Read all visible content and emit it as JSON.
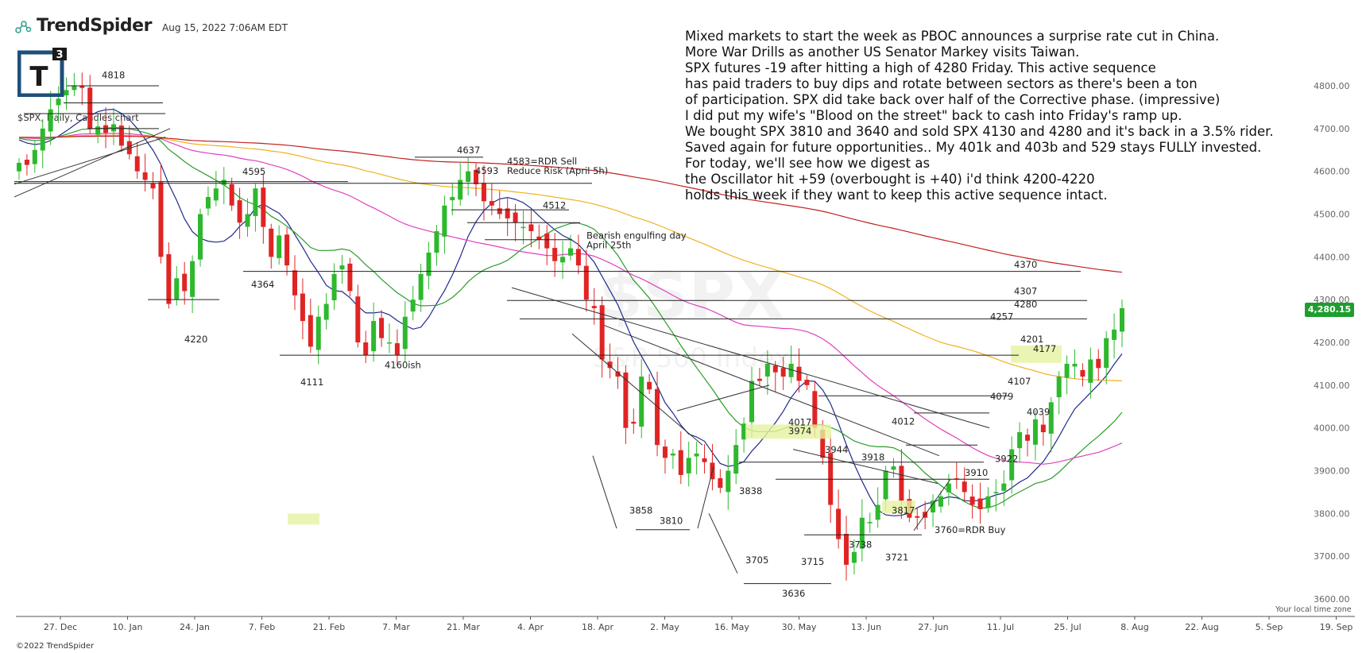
{
  "header": {
    "brand": "TrendSpider",
    "timestamp": "Aug 15, 2022 7:06AM EDT",
    "logo_text": "T",
    "logo_sup": "3"
  },
  "commentary": [
    "Mixed markets to start the week as PBOC announces a surprise rate cut in China.",
    "More War Drills as another US Senator Markey visits Taiwan.",
    "SPX futures -19 after hitting a high of 4280 Friday. This active sequence",
    "has paid traders to buy dips and rotate between sectors as there's been a ton",
    "of participation. SPX did take back over half of the Corrective phase. (impressive)",
    "I did put my wife's \"Blood on the street\" back to cash into Friday's ramp up.",
    "We bought SPX 3810 and 3640 and sold SPX 4130 and 4280 and it's back in a 3.5% rider.",
    "Saved again for future opportunities.. My 401k and 403b and 529 stays FULLY invested.",
    "For today, we'll see how we digest as",
    "the Oscillator hit +59 (overbought is +40) i'd think 4200-4220",
    "holds this week if they want to keep this active sequence intact."
  ],
  "footer": "©2022 TrendSpider",
  "timezone_label": "Your local time zone",
  "last_price": "4,280.15",
  "chart_data": {
    "type": "candlestick",
    "title": "$SPX, Daily, Candles chart",
    "watermark": "$SPX",
    "watermark_sub": "S&P 500 Index",
    "ylim": [
      3550,
      4900
    ],
    "y_ticks": [
      3600,
      3700,
      3800,
      3900,
      4000,
      4100,
      4200,
      4300,
      4400,
      4500,
      4600,
      4700,
      4800
    ],
    "x_ticks": [
      "27. Dec",
      "10. Jan",
      "24. Jan",
      "7. Feb",
      "21. Feb",
      "7. Mar",
      "21. Mar",
      "4. Apr",
      "18. Apr",
      "2. May",
      "16. May",
      "30. May",
      "13. Jun",
      "27. Jun",
      "11. Jul",
      "25. Jul",
      "8. Aug",
      "22. Aug",
      "5. Sep",
      "19. Sep"
    ],
    "up_color": "#2db82d",
    "down_color": "#e02424",
    "close_path": [
      4620,
      4615,
      4650,
      4700,
      4745,
      4770,
      4790,
      4800,
      4795,
      4700,
      4705,
      4690,
      4710,
      4660,
      4640,
      4600,
      4580,
      4560,
      4400,
      4290,
      4350,
      4320,
      4390,
      4500,
      4540,
      4560,
      4580,
      4520,
      4480,
      4500,
      4560,
      4470,
      4400,
      4450,
      4380,
      4310,
      4250,
      4190,
      4260,
      4290,
      4360,
      4380,
      4320,
      4200,
      4170,
      4250,
      4210,
      4200,
      4170,
      4260,
      4300,
      4360,
      4410,
      4460,
      4520,
      4540,
      4580,
      4600,
      4570,
      4530,
      4520,
      4500,
      4490,
      4480,
      4470,
      4460,
      4440,
      4420,
      4390,
      4400,
      4420,
      4380,
      4300,
      4280,
      4160,
      4140,
      4120,
      4000,
      4010,
      4120,
      4090,
      3960,
      3930,
      3940,
      3890,
      3930,
      3940,
      3920,
      3880,
      3860,
      3900,
      3960,
      4010,
      4110,
      4110,
      4150,
      4130,
      4120,
      4150,
      4110,
      4100,
      4000,
      3930,
      3820,
      3740,
      3680,
      3710,
      3790,
      3780,
      3820,
      3900,
      3910,
      3830,
      3790,
      3790,
      3790,
      3830,
      3840,
      3870,
      3880,
      3850,
      3820,
      3810,
      3840,
      3850,
      3870,
      3950,
      3990,
      3970,
      4020,
      3990,
      4060,
      4120,
      4150,
      4150,
      4120,
      4160,
      4140,
      4210,
      4230,
      4280
    ],
    "candles": 140,
    "moving_averages": [
      {
        "name": "9",
        "color": "#1f2a8c"
      },
      {
        "name": "20",
        "color": "#2a9d2a"
      },
      {
        "name": "50",
        "color": "#e040c0"
      },
      {
        "name": "100",
        "color": "#f0b020"
      },
      {
        "name": "200",
        "color": "#c02020"
      }
    ],
    "levels": [
      {
        "label": "4818",
        "value": 4818
      },
      {
        "label": "4595",
        "value": 4595
      },
      {
        "label": "4637",
        "value": 4637
      },
      {
        "label": "4593",
        "value": 4593
      },
      {
        "label": "4583=RDR Sell",
        "value": 4583
      },
      {
        "label": "Reduce Risk (April 5h)",
        "value": 4560
      },
      {
        "label": "4512",
        "value": 4512
      },
      {
        "label": "Bearish engulfing day",
        "value": 4460
      },
      {
        "label": "April 25th",
        "value": 4435
      },
      {
        "label": "4370",
        "value": 4370
      },
      {
        "label": "4364",
        "value": 4364
      },
      {
        "label": "4307",
        "value": 4307
      },
      {
        "label": "4280",
        "value": 4280
      },
      {
        "label": "4257",
        "value": 4257
      },
      {
        "label": "4220",
        "value": 4220
      },
      {
        "label": "4201",
        "value": 4201
      },
      {
        "label": "4177",
        "value": 4177
      },
      {
        "label": "4160ish",
        "value": 4160
      },
      {
        "label": "4111",
        "value": 4111
      },
      {
        "label": "4107",
        "value": 4107
      },
      {
        "label": "4079",
        "value": 4079
      },
      {
        "label": "4039",
        "value": 4039
      },
      {
        "label": "4017",
        "value": 4017
      },
      {
        "label": "4012",
        "value": 4012
      },
      {
        "label": "3974",
        "value": 3974
      },
      {
        "label": "3944",
        "value": 3944
      },
      {
        "label": "3922",
        "value": 3922
      },
      {
        "label": "3918",
        "value": 3918
      },
      {
        "label": "3910",
        "value": 3910
      },
      {
        "label": "3858",
        "value": 3858
      },
      {
        "label": "3838",
        "value": 3838
      },
      {
        "label": "3817",
        "value": 3817
      },
      {
        "label": "3810",
        "value": 3810
      },
      {
        "label": "3760=RDR Buy",
        "value": 3760
      },
      {
        "label": "3738",
        "value": 3738
      },
      {
        "label": "3721",
        "value": 3721
      },
      {
        "label": "3715",
        "value": 3715
      },
      {
        "label": "3705",
        "value": 3705
      },
      {
        "label": "3636",
        "value": 3636
      }
    ]
  }
}
